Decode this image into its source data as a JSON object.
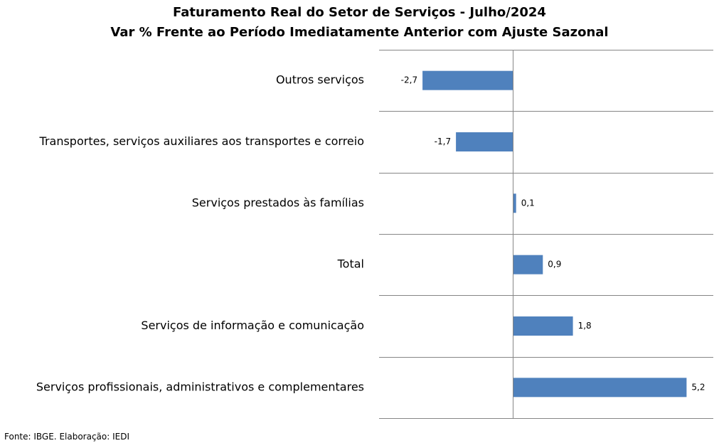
{
  "chart_data": {
    "type": "bar",
    "orientation": "horizontal",
    "title": "Faturamento Real do Setor de Serviços - Julho/2024",
    "subtitle": "Var % Frente ao Período Imediatamente Anterior com Ajuste Sazonal",
    "categories": [
      "Outros serviços",
      "Transportes, serviços auxiliares aos transportes e correio",
      "Serviços prestados às famílias",
      "Total",
      "Serviços de informação e comunicação",
      "Serviços profissionais, administrativos e complementares"
    ],
    "values": [
      -2.7,
      -1.7,
      0.1,
      0.9,
      1.8,
      5.2
    ],
    "value_labels": [
      "-2,7",
      "-1,7",
      "0,1",
      "0,9",
      "1,8",
      "5,2"
    ],
    "xlim": [
      -4,
      6
    ],
    "bar_color": "#4f81bd",
    "grid": true
  },
  "source": "Fonte: IBGE. Elaboração: IEDI"
}
